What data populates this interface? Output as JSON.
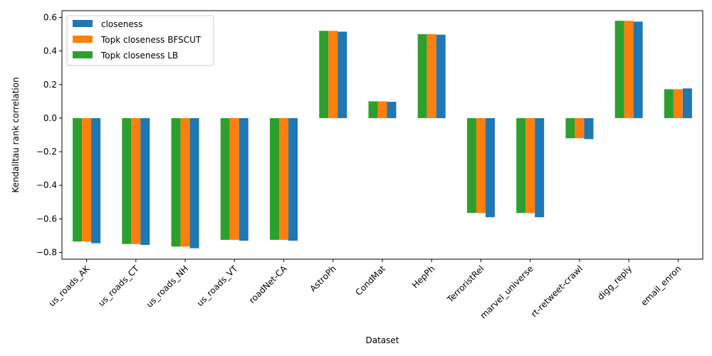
{
  "chart_data": {
    "type": "bar",
    "title": "",
    "xlabel": "Dataset",
    "ylabel": "Kendalltau rank correlation",
    "ylim": [
      -0.84,
      0.64
    ],
    "yticks": [
      -0.8,
      -0.6,
      -0.4,
      -0.2,
      0.0,
      0.2,
      0.4,
      0.6
    ],
    "ytick_labels": [
      "−0.8",
      "−0.6",
      "−0.4",
      "−0.2",
      "0.0",
      "0.2",
      "0.4",
      "0.6"
    ],
    "grid": false,
    "legend_position": "top-left",
    "categories": [
      "us_roads_AK",
      "us_roads_CT",
      "us_roads_NH",
      "us_roads_VT",
      "roadNet-CA",
      "AstroPh",
      "CondMat",
      "HepPh",
      "TerroristRel",
      "marvel_universe",
      "rt-retweet-crawl",
      "digg_reply",
      "email_enron"
    ],
    "series": [
      {
        "name": "closeness",
        "color": "#1f77b4",
        "values": [
          -0.745,
          -0.755,
          -0.775,
          -0.73,
          -0.73,
          0.515,
          0.097,
          0.497,
          -0.59,
          -0.59,
          -0.125,
          0.575,
          0.177
        ]
      },
      {
        "name": "Topk closeness BFSCUT",
        "color": "#ff7f0e",
        "values": [
          -0.735,
          -0.75,
          -0.765,
          -0.725,
          -0.725,
          0.52,
          0.1,
          0.5,
          -0.565,
          -0.565,
          -0.12,
          0.58,
          0.172
        ]
      },
      {
        "name": "Topk closeness LB",
        "color": "#2ca02c",
        "values": [
          -0.735,
          -0.75,
          -0.765,
          -0.725,
          -0.725,
          0.52,
          0.1,
          0.5,
          -0.565,
          -0.565,
          -0.12,
          0.58,
          0.172
        ]
      }
    ]
  }
}
